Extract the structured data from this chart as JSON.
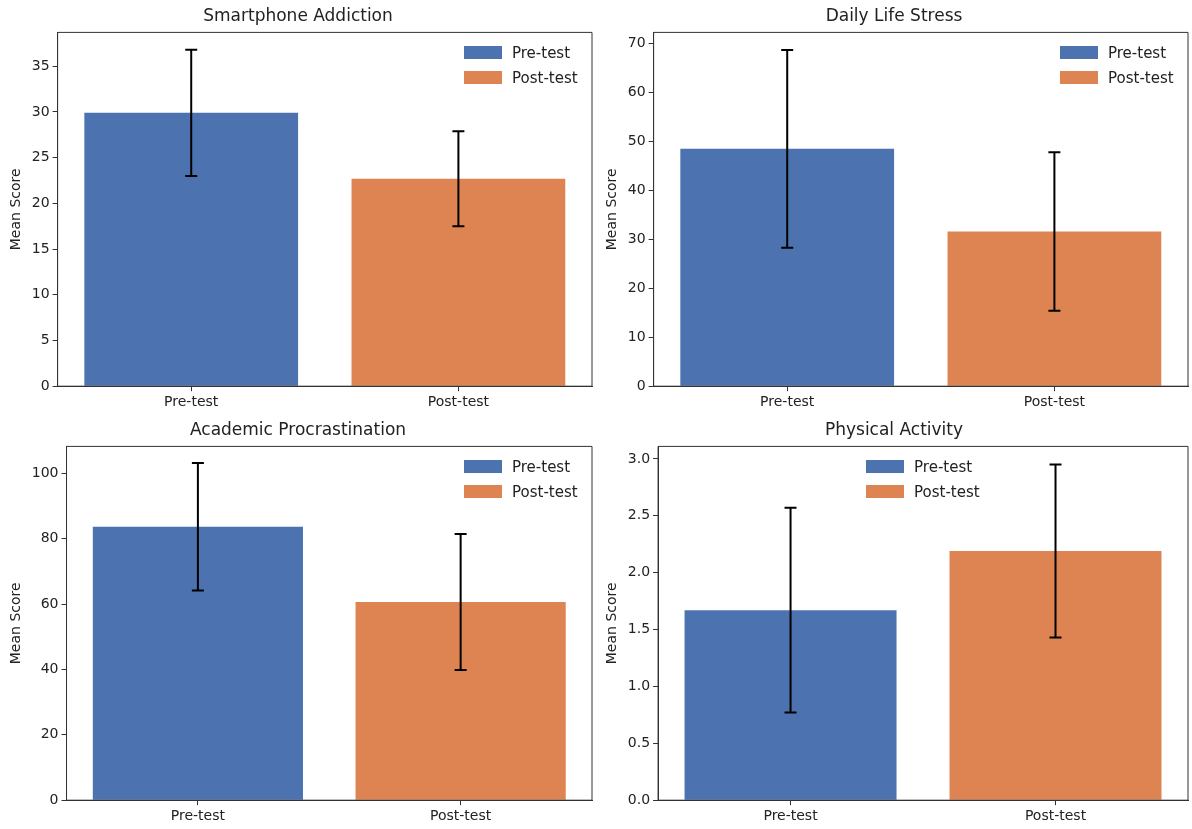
{
  "chart_data": [
    {
      "type": "bar",
      "title": "Smartphone Addiction",
      "ylabel": "Mean Score",
      "categories": [
        "Pre-test",
        "Post-test"
      ],
      "series": [
        {
          "name": "Pre-test",
          "color": "#4c72b0",
          "values": [
            29.9,
            null
          ],
          "errors": [
            6.9,
            null
          ]
        },
        {
          "name": "Post-test",
          "color": "#dd8452",
          "values": [
            null,
            22.7
          ],
          "errors": [
            null,
            5.2
          ]
        }
      ],
      "ylim": [
        0,
        38.7
      ],
      "yticks": [
        0,
        5,
        10,
        15,
        20,
        25,
        30,
        35
      ],
      "legend": "top right"
    },
    {
      "type": "bar",
      "title": "Daily Life Stress",
      "ylabel": "Mean Score",
      "categories": [
        "Pre-test",
        "Post-test"
      ],
      "series": [
        {
          "name": "Pre-test",
          "color": "#4c72b0",
          "values": [
            48.5,
            null
          ],
          "errors": [
            20.2,
            null
          ]
        },
        {
          "name": "Post-test",
          "color": "#dd8452",
          "values": [
            null,
            31.6
          ],
          "errors": [
            null,
            16.2
          ]
        }
      ],
      "ylim": [
        0,
        72.3
      ],
      "yticks": [
        0,
        10,
        20,
        30,
        40,
        50,
        60,
        70
      ],
      "legend": "top right"
    },
    {
      "type": "bar",
      "title": "Academic Procrastination",
      "ylabel": "Mean Score",
      "categories": [
        "Pre-test",
        "Post-test"
      ],
      "series": [
        {
          "name": "Pre-test",
          "color": "#4c72b0",
          "values": [
            83.6,
            null
          ],
          "errors": [
            19.5,
            null
          ]
        },
        {
          "name": "Post-test",
          "color": "#dd8452",
          "values": [
            null,
            60.6
          ],
          "errors": [
            null,
            20.8
          ]
        }
      ],
      "ylim": [
        0,
        108.2
      ],
      "yticks": [
        0,
        20,
        40,
        60,
        80,
        100
      ],
      "legend": "top right"
    },
    {
      "type": "bar",
      "title": "Physical Activity",
      "ylabel": "Mean Score",
      "categories": [
        "Pre-test",
        "Post-test"
      ],
      "series": [
        {
          "name": "Pre-test",
          "color": "#4c72b0",
          "values": [
            1.67,
            null
          ],
          "errors": [
            0.9,
            null
          ]
        },
        {
          "name": "Post-test",
          "color": "#dd8452",
          "values": [
            null,
            2.19
          ],
          "errors": [
            null,
            0.76
          ]
        }
      ],
      "ylim": [
        0,
        3.11
      ],
      "yticks": [
        {
          "value": 0,
          "label": "0.0"
        },
        0.5,
        {
          "value": 1,
          "label": "1.0"
        },
        1.5,
        {
          "value": 2,
          "label": "2.0"
        },
        2.5,
        {
          "value": 3,
          "label": "3.0"
        }
      ],
      "legend": "top"
    }
  ]
}
